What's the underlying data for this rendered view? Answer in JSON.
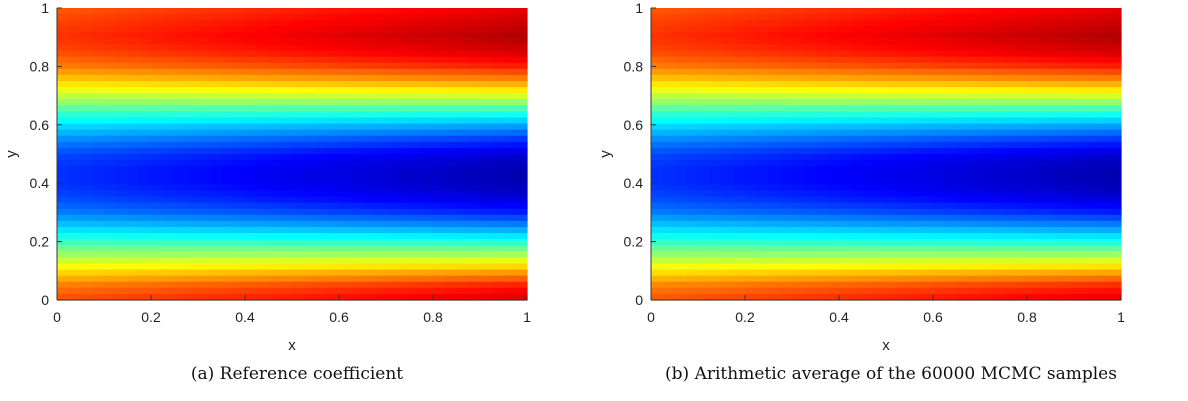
{
  "chart_data": [
    {
      "type": "heatmap",
      "caption": "(a) Reference coefficient",
      "xlabel": "x",
      "ylabel": "y",
      "xlim": [
        0,
        1
      ],
      "ylim": [
        0,
        1
      ],
      "xticks": [
        "0",
        "0.2",
        "0.4",
        "0.6",
        "0.8",
        "1"
      ],
      "yticks": [
        "0",
        "0.2",
        "0.4",
        "0.6",
        "0.8",
        "1"
      ],
      "colormap": "jet",
      "y_profile": [
        {
          "y": 0.0,
          "v": 0.86
        },
        {
          "y": 0.05,
          "v": 0.8
        },
        {
          "y": 0.1,
          "v": 0.68
        },
        {
          "y": 0.15,
          "v": 0.55
        },
        {
          "y": 0.2,
          "v": 0.42
        },
        {
          "y": 0.25,
          "v": 0.3
        },
        {
          "y": 0.3,
          "v": 0.2
        },
        {
          "y": 0.35,
          "v": 0.14
        },
        {
          "y": 0.4,
          "v": 0.11
        },
        {
          "y": 0.45,
          "v": 0.11
        },
        {
          "y": 0.5,
          "v": 0.14
        },
        {
          "y": 0.55,
          "v": 0.22
        },
        {
          "y": 0.6,
          "v": 0.32
        },
        {
          "y": 0.65,
          "v": 0.44
        },
        {
          "y": 0.7,
          "v": 0.58
        },
        {
          "y": 0.75,
          "v": 0.7
        },
        {
          "y": 0.8,
          "v": 0.8
        },
        {
          "y": 0.85,
          "v": 0.86
        },
        {
          "y": 0.9,
          "v": 0.89
        },
        {
          "y": 0.95,
          "v": 0.87
        },
        {
          "y": 1.0,
          "v": 0.84
        }
      ],
      "x_gain": 0.08
    },
    {
      "type": "heatmap",
      "caption": "(b) Arithmetic average of the 60000 MCMC samples",
      "xlabel": "x",
      "ylabel": "y",
      "xlim": [
        0,
        1
      ],
      "ylim": [
        0,
        1
      ],
      "xticks": [
        "0",
        "0.2",
        "0.4",
        "0.6",
        "0.8",
        "1"
      ],
      "yticks": [
        "0",
        "0.2",
        "0.4",
        "0.6",
        "0.8",
        "1"
      ],
      "colormap": "jet",
      "y_profile": [
        {
          "y": 0.0,
          "v": 0.85
        },
        {
          "y": 0.05,
          "v": 0.79
        },
        {
          "y": 0.1,
          "v": 0.67
        },
        {
          "y": 0.15,
          "v": 0.54
        },
        {
          "y": 0.2,
          "v": 0.41
        },
        {
          "y": 0.25,
          "v": 0.3
        },
        {
          "y": 0.3,
          "v": 0.2
        },
        {
          "y": 0.35,
          "v": 0.14
        },
        {
          "y": 0.4,
          "v": 0.11
        },
        {
          "y": 0.45,
          "v": 0.11
        },
        {
          "y": 0.5,
          "v": 0.14
        },
        {
          "y": 0.55,
          "v": 0.22
        },
        {
          "y": 0.6,
          "v": 0.32
        },
        {
          "y": 0.65,
          "v": 0.44
        },
        {
          "y": 0.7,
          "v": 0.58
        },
        {
          "y": 0.75,
          "v": 0.7
        },
        {
          "y": 0.8,
          "v": 0.8
        },
        {
          "y": 0.85,
          "v": 0.86
        },
        {
          "y": 0.9,
          "v": 0.89
        },
        {
          "y": 0.95,
          "v": 0.87
        },
        {
          "y": 1.0,
          "v": 0.84
        }
      ],
      "x_gain": 0.08
    }
  ]
}
